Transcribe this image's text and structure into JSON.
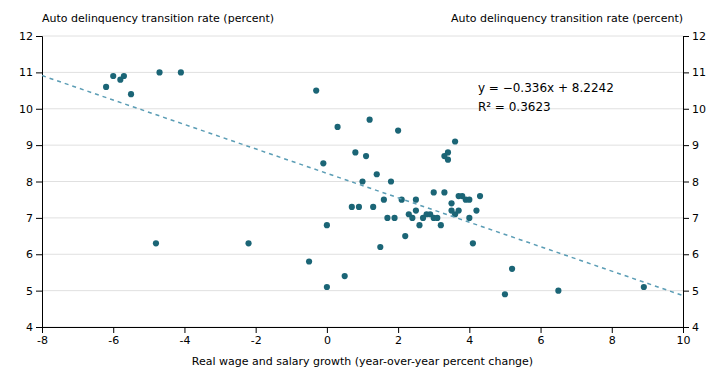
{
  "chart_data": {
    "type": "scatter",
    "x_label": "Real wage and salary growth (year-over-year percent change)",
    "y_label": "Auto delinquency transition rate (percent)",
    "y2_label": "Auto delinquency transition rate (percent)",
    "annotations": [
      "y = −0.336x + 8.2242",
      "R² = 0.3623"
    ],
    "xlim": [
      -8,
      10
    ],
    "xticks": [
      -8,
      -6,
      -4,
      -2,
      0,
      2,
      4,
      6,
      8,
      10
    ],
    "ylim": [
      4,
      12
    ],
    "yticks": [
      4,
      5,
      6,
      7,
      8,
      9,
      10,
      11,
      12
    ],
    "y2lim": [
      4,
      12
    ],
    "y2ticks": [
      4,
      5,
      6,
      7,
      8,
      9,
      10,
      11,
      12
    ],
    "grid": true,
    "series": [
      {
        "type": "scatter",
        "color": "#1b6576",
        "marker": "circle",
        "x": [
          -6.2,
          -6.0,
          -5.8,
          -5.7,
          -5.5,
          -4.8,
          -4.7,
          -4.1,
          -2.2,
          -0.5,
          -0.3,
          -0.1,
          0.0,
          0.0,
          0.3,
          0.5,
          0.7,
          0.8,
          0.9,
          1.0,
          1.1,
          1.2,
          1.3,
          1.4,
          1.5,
          1.6,
          1.7,
          1.8,
          1.9,
          2.0,
          2.1,
          2.2,
          2.3,
          2.4,
          2.5,
          2.5,
          2.6,
          2.7,
          2.8,
          2.9,
          3.0,
          3.0,
          3.1,
          3.2,
          3.3,
          3.3,
          3.4,
          3.4,
          3.5,
          3.5,
          3.6,
          3.6,
          3.7,
          3.7,
          3.8,
          3.9,
          4.0,
          4.0,
          4.1,
          4.2,
          4.3,
          5.0,
          5.2,
          6.5,
          8.9
        ],
        "values": [
          10.6,
          10.9,
          10.8,
          10.9,
          10.4,
          6.3,
          11.0,
          11.0,
          6.3,
          5.8,
          10.5,
          8.5,
          5.1,
          6.8,
          9.5,
          5.4,
          7.3,
          8.8,
          7.3,
          8.0,
          8.7,
          9.7,
          7.3,
          8.2,
          6.2,
          7.5,
          7.0,
          8.0,
          7.0,
          9.4,
          7.5,
          6.5,
          7.1,
          7.0,
          7.5,
          7.2,
          6.8,
          7.0,
          7.1,
          7.1,
          7.7,
          7.0,
          7.0,
          6.8,
          8.7,
          7.7,
          8.8,
          8.6,
          7.2,
          7.4,
          9.1,
          7.1,
          7.2,
          7.6,
          7.6,
          7.5,
          7.5,
          7.0,
          6.3,
          7.2,
          7.6,
          4.9,
          5.6,
          5.0,
          5.1
        ]
      },
      {
        "type": "line",
        "color": "#5b9db5",
        "line_style": "dashed",
        "x": [
          -8,
          10
        ],
        "values": [
          10.9122,
          4.8642
        ]
      }
    ]
  }
}
